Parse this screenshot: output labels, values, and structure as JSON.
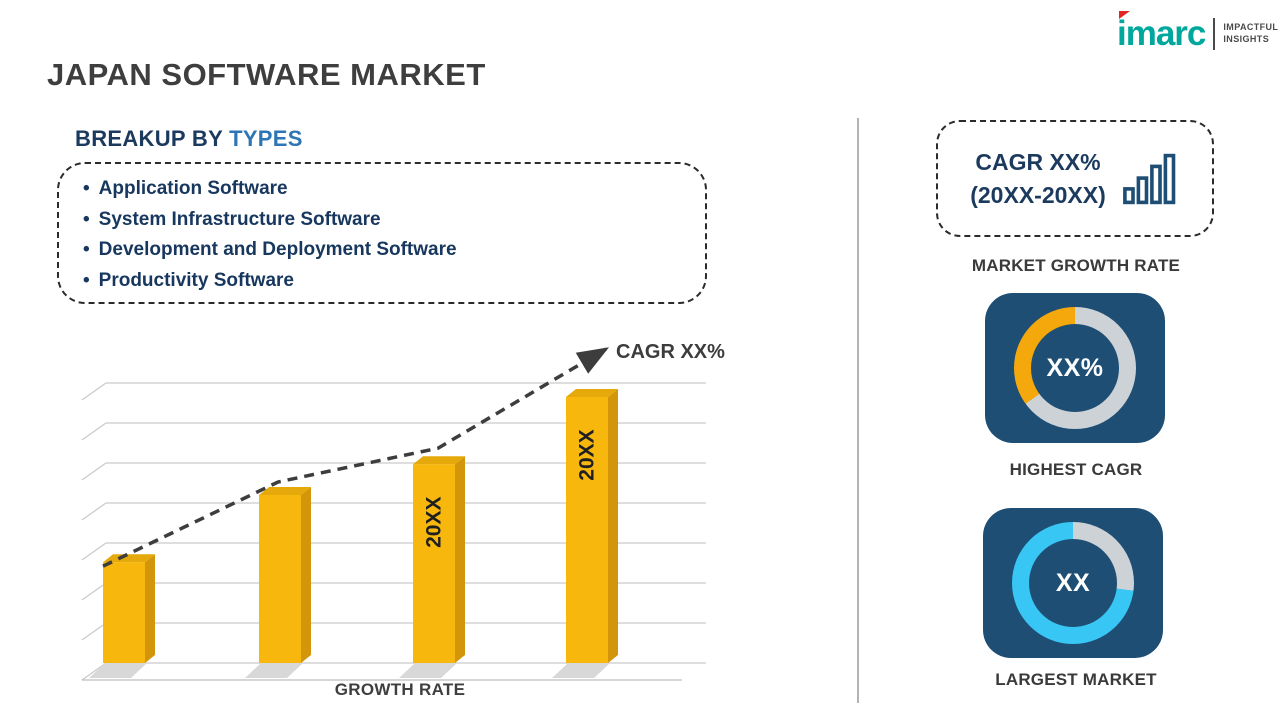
{
  "header": {
    "title": "JAPAN SOFTWARE MARKET"
  },
  "logo": {
    "brand": "imarc",
    "tagline_line1": "IMPACTFUL",
    "tagline_line2": "INSIGHTS",
    "brand_color": "#00A79D",
    "flag_color": "#E52521"
  },
  "breakup": {
    "heading_prefix": "BREAKUP BY",
    "heading_highlight": "TYPES",
    "bullet": "•",
    "items": [
      "Application Software",
      "System Infrastructure Software",
      "Development and Deployment Software",
      "Productivity Software"
    ]
  },
  "right_panel": {
    "cagr_line1": "CAGR XX%",
    "cagr_line2": "(20XX-20XX)",
    "market_growth_label": "MARKET GROWTH RATE"
  },
  "icons": {
    "cagr_box_icon": "bar-chart-icon",
    "logo_flag_icon": "imarc-flag-icon"
  },
  "accent_colors": {
    "card_navy": "#1E4E74",
    "heading_navy": "#17375E",
    "heading_blue": "#2E75B6",
    "divider_gray": "#B3B3B3"
  },
  "chart_data": [
    {
      "type": "bar",
      "title": "",
      "xlabel": "GROWTH RATE",
      "trend_label": "CAGR XX%",
      "bar_labels": [
        "",
        "",
        "20XX",
        "20XX"
      ],
      "values": [
        36,
        60,
        71,
        95
      ],
      "ylim": [
        0,
        100
      ],
      "grid": true,
      "legend": "none",
      "bar_color": "#F7B70D",
      "bar_side_color": "#D3950A",
      "bar_top_color": "#E5A90B",
      "bar_label_color": "#1F1F1F",
      "trend_color": "#3D3D3D",
      "trend_style": "dashed-arrow"
    },
    {
      "type": "pie",
      "variant": "donut",
      "label": "HIGHEST CAGR",
      "center_text": "XX%",
      "start_angle_deg": 0,
      "slices": [
        {
          "name": "remainder",
          "value": 65,
          "color": "#CDD2D6"
        },
        {
          "name": "highest-cagr-share",
          "value": 35,
          "color": "#F5A80C"
        }
      ]
    },
    {
      "type": "pie",
      "variant": "donut",
      "label": "LARGEST MARKET",
      "center_text": "XX",
      "start_angle_deg": 0,
      "slices": [
        {
          "name": "remainder",
          "value": 27,
          "color": "#CDD2D6"
        },
        {
          "name": "largest-market-share",
          "value": 73,
          "color": "#38C6F4"
        }
      ]
    }
  ]
}
